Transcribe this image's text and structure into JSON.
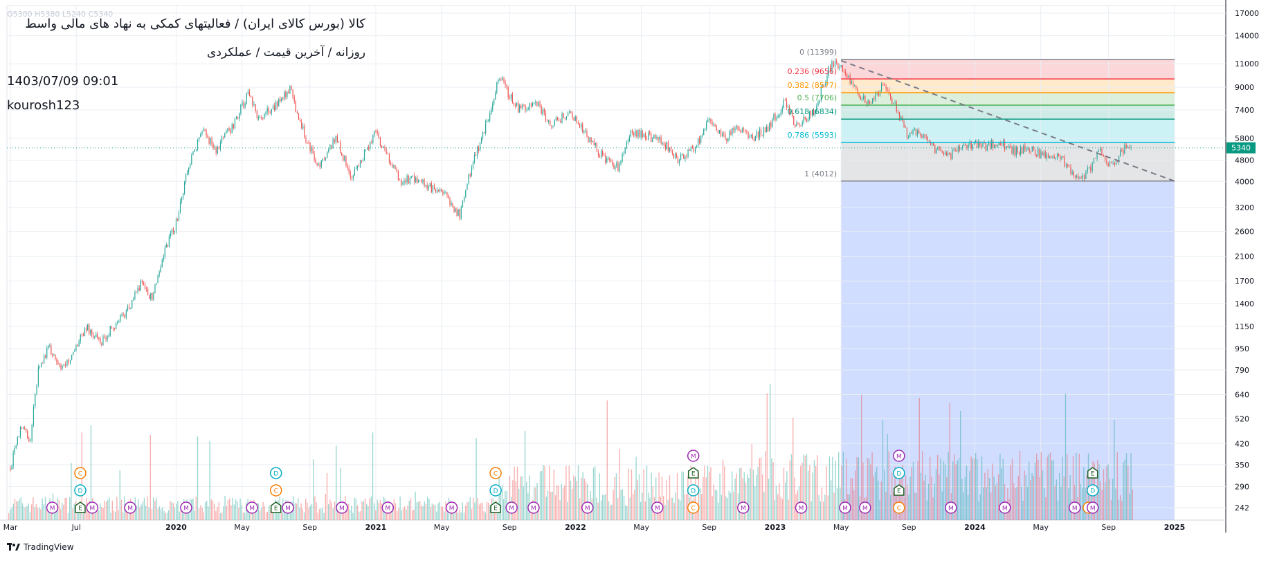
{
  "header": {
    "title": "کالا (بورس کالای ایران) / فعالیتهای کمکی به نهاد های مالی واسط",
    "subtitle": "روزانه / آخرین قیمت / عملکردی",
    "datetime": "1403/07/09 09:01",
    "author": "kourosh123",
    "ohlc_faded": "O5300  H5380  L5240  C5340"
  },
  "brand": {
    "name": "TradingView"
  },
  "chart_data": {
    "type": "candlestick",
    "price_scale": "log",
    "last_price": "5340",
    "colors": {
      "up": "#26a69a",
      "down": "#ef5350",
      "background": "#ffffff",
      "grid": "#e9eef3"
    },
    "y_ticks": [
      "17000",
      "14000",
      "11000",
      "9000",
      "7400",
      "5800",
      "4800",
      "4000",
      "3200",
      "2600",
      "2100",
      "1700",
      "1400",
      "1150",
      "950",
      "790",
      "640",
      "520",
      "420",
      "350",
      "290",
      "242"
    ],
    "x_ticks": [
      {
        "label": "Mar",
        "t": 2019.17
      },
      {
        "label": "Jul",
        "t": 2019.5
      },
      {
        "label": "2020",
        "t": 2020.0
      },
      {
        "label": "May",
        "t": 2020.33
      },
      {
        "label": "Sep",
        "t": 2020.67
      },
      {
        "label": "2021",
        "t": 2021.0
      },
      {
        "label": "May",
        "t": 2021.33
      },
      {
        "label": "Sep",
        "t": 2021.67
      },
      {
        "label": "2022",
        "t": 2022.0
      },
      {
        "label": "May",
        "t": 2022.33
      },
      {
        "label": "Sep",
        "t": 2022.67
      },
      {
        "label": "2023",
        "t": 2023.0
      },
      {
        "label": "May",
        "t": 2023.33
      },
      {
        "label": "Sep",
        "t": 2023.67
      },
      {
        "label": "2024",
        "t": 2024.0
      },
      {
        "label": "May",
        "t": 2024.33
      },
      {
        "label": "Sep",
        "t": 2024.67
      },
      {
        "label": "2025",
        "t": 2025.0
      }
    ],
    "price_path": [
      [
        2019.17,
        340
      ],
      [
        2019.22,
        490
      ],
      [
        2019.27,
        440
      ],
      [
        2019.31,
        800
      ],
      [
        2019.36,
        960
      ],
      [
        2019.43,
        800
      ],
      [
        2019.47,
        880
      ],
      [
        2019.55,
        1150
      ],
      [
        2019.62,
        1000
      ],
      [
        2019.67,
        1120
      ],
      [
        2019.75,
        1300
      ],
      [
        2019.83,
        1700
      ],
      [
        2019.88,
        1450
      ],
      [
        2019.93,
        2100
      ],
      [
        2020.0,
        2800
      ],
      [
        2020.07,
        4800
      ],
      [
        2020.13,
        6200
      ],
      [
        2020.2,
        5300
      ],
      [
        2020.28,
        6400
      ],
      [
        2020.36,
        8400
      ],
      [
        2020.42,
        6800
      ],
      [
        2020.5,
        7800
      ],
      [
        2020.57,
        8800
      ],
      [
        2020.65,
        5800
      ],
      [
        2020.72,
        4500
      ],
      [
        2020.8,
        5800
      ],
      [
        2020.88,
        4100
      ],
      [
        2020.95,
        5200
      ],
      [
        2021.0,
        6200
      ],
      [
        2021.06,
        4900
      ],
      [
        2021.12,
        4000
      ],
      [
        2021.2,
        4100
      ],
      [
        2021.35,
        3500
      ],
      [
        2021.42,
        3000
      ],
      [
        2021.48,
        4600
      ],
      [
        2021.55,
        6400
      ],
      [
        2021.62,
        9800
      ],
      [
        2021.67,
        8300
      ],
      [
        2021.72,
        7400
      ],
      [
        2021.8,
        8000
      ],
      [
        2021.88,
        6500
      ],
      [
        2021.97,
        7300
      ],
      [
        2022.05,
        6000
      ],
      [
        2022.15,
        4800
      ],
      [
        2022.22,
        4500
      ],
      [
        2022.27,
        6000
      ],
      [
        2022.35,
        6000
      ],
      [
        2022.45,
        5500
      ],
      [
        2022.52,
        4800
      ],
      [
        2022.6,
        5400
      ],
      [
        2022.67,
        6800
      ],
      [
        2022.75,
        5800
      ],
      [
        2022.82,
        6400
      ],
      [
        2022.88,
        5800
      ],
      [
        2022.95,
        6200
      ],
      [
        2023.0,
        7000
      ],
      [
        2023.05,
        7900
      ],
      [
        2023.1,
        6500
      ],
      [
        2023.15,
        6800
      ],
      [
        2023.2,
        7400
      ],
      [
        2023.26,
        10200
      ],
      [
        2023.3,
        11300
      ],
      [
        2023.36,
        10000
      ],
      [
        2023.42,
        8500
      ],
      [
        2023.48,
        7700
      ],
      [
        2023.54,
        9200
      ],
      [
        2023.6,
        7700
      ],
      [
        2023.66,
        6000
      ],
      [
        2023.72,
        6200
      ],
      [
        2023.8,
        5300
      ],
      [
        2023.88,
        5000
      ],
      [
        2023.96,
        5500
      ],
      [
        2024.04,
        5400
      ],
      [
        2024.12,
        5600
      ],
      [
        2024.2,
        5200
      ],
      [
        2024.28,
        5300
      ],
      [
        2024.36,
        4900
      ],
      [
        2024.42,
        5000
      ],
      [
        2024.48,
        4400
      ],
      [
        2024.54,
        4100
      ],
      [
        2024.58,
        4500
      ],
      [
        2024.62,
        5300
      ],
      [
        2024.66,
        4500
      ],
      [
        2024.7,
        4700
      ],
      [
        2024.75,
        5300
      ],
      [
        2024.79,
        5340
      ]
    ],
    "fibonacci": {
      "start_t": 2023.33,
      "end_t": 2025.0,
      "levels": [
        {
          "ratio": "0",
          "price": 11399,
          "label": "0 (11399)",
          "color": "#787b86"
        },
        {
          "ratio": "0.236",
          "price": 9656,
          "label": "0.236 (9656)",
          "color": "#f23645"
        },
        {
          "ratio": "0.382",
          "price": 8577,
          "label": "0.382 (8577)",
          "color": "#ff9800"
        },
        {
          "ratio": "0.5",
          "price": 7706,
          "label": "0.5 (7706)",
          "color": "#4caf50"
        },
        {
          "ratio": "0.618",
          "price": 6834,
          "label": "0.618 (6834)",
          "color": "#089981"
        },
        {
          "ratio": "0.786",
          "price": 5593,
          "label": "0.786 (5593)",
          "color": "#00bcd4"
        },
        {
          "ratio": "1",
          "price": 4012,
          "label": "1 (4012)",
          "color": "#787b86"
        }
      ]
    },
    "trendline": {
      "t1": 2023.33,
      "p1": 11300,
      "t2": 2025.0,
      "p2": 4012
    },
    "event_markers": [
      {
        "t": 2019.38,
        "letters": [
          "M"
        ]
      },
      {
        "t": 2019.52,
        "letters": [
          "E",
          "D",
          "C"
        ]
      },
      {
        "t": 2019.58,
        "letters": [
          "M"
        ]
      },
      {
        "t": 2019.77,
        "letters": [
          "M"
        ]
      },
      {
        "t": 2020.05,
        "letters": [
          "M"
        ]
      },
      {
        "t": 2020.38,
        "letters": [
          "M"
        ]
      },
      {
        "t": 2020.5,
        "letters": [
          "E",
          "C",
          "D"
        ]
      },
      {
        "t": 2020.56,
        "letters": [
          "M"
        ]
      },
      {
        "t": 2020.83,
        "letters": [
          "M"
        ]
      },
      {
        "t": 2021.06,
        "letters": [
          "M"
        ]
      },
      {
        "t": 2021.38,
        "letters": [
          "M"
        ]
      },
      {
        "t": 2021.6,
        "letters": [
          "E",
          "D",
          "C"
        ]
      },
      {
        "t": 2021.68,
        "letters": [
          "M"
        ]
      },
      {
        "t": 2021.79,
        "letters": [
          "M"
        ]
      },
      {
        "t": 2022.06,
        "letters": [
          "M"
        ]
      },
      {
        "t": 2022.41,
        "letters": [
          "M"
        ]
      },
      {
        "t": 2022.59,
        "letters": [
          "C",
          "D",
          "E",
          "M"
        ]
      },
      {
        "t": 2022.84,
        "letters": [
          "M"
        ]
      },
      {
        "t": 2023.13,
        "letters": [
          "M"
        ]
      },
      {
        "t": 2023.35,
        "letters": [
          "M"
        ]
      },
      {
        "t": 2023.45,
        "letters": [
          "M"
        ]
      },
      {
        "t": 2023.62,
        "letters": [
          "C",
          "E",
          "D",
          "M"
        ]
      },
      {
        "t": 2023.88,
        "letters": [
          "M"
        ]
      },
      {
        "t": 2024.15,
        "letters": [
          "M"
        ]
      },
      {
        "t": 2024.5,
        "letters": [
          "M"
        ]
      },
      {
        "t": 2024.57,
        "letters": [
          "C"
        ]
      },
      {
        "t": 2024.59,
        "letters": [
          "M",
          "D",
          "E"
        ]
      }
    ],
    "marker_colors": {
      "M": "#9c27b0",
      "C": "#f57c00",
      "D": "#00acc1",
      "E": "#1b5e20"
    }
  }
}
